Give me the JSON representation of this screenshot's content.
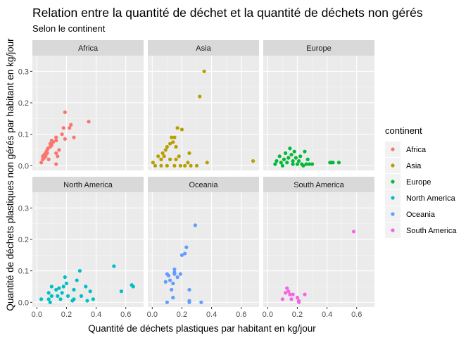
{
  "chart_data": {
    "type": "scatter",
    "title": "Relation entre la quantité de déchet et la quantité de déchets non gérés",
    "subtitle": "Selon le continent",
    "xlabel": "Quantité de déchets plastiques par habitant en kg/jour",
    "ylabel": "Quantité de déchets plastiques non gérés par habitant en kg/jour",
    "xlim": [
      -0.03,
      0.72
    ],
    "ylim": [
      -0.015,
      0.35
    ],
    "xticks": [
      0.0,
      0.2,
      0.4,
      0.6
    ],
    "xtick_labels": [
      "0.0",
      "0.2",
      "0.4",
      "0.6"
    ],
    "yticks": [
      0.0,
      0.1,
      0.2,
      0.3
    ],
    "ytick_labels": [
      "0.0",
      "0.1",
      "0.2",
      "0.3"
    ],
    "grid": true,
    "legend": {
      "title": "continent",
      "placement": "right"
    },
    "facet_layout": {
      "rows": 2,
      "cols": 3
    },
    "series": [
      {
        "name": "Africa",
        "color": "#F8766D",
        "points": [
          [
            0.03,
            0.01
          ],
          [
            0.04,
            0.02
          ],
          [
            0.04,
            0.03
          ],
          [
            0.05,
            0.025
          ],
          [
            0.05,
            0.035
          ],
          [
            0.06,
            0.04
          ],
          [
            0.06,
            0.03
          ],
          [
            0.065,
            0.045
          ],
          [
            0.07,
            0.05
          ],
          [
            0.07,
            0.04
          ],
          [
            0.075,
            0.055
          ],
          [
            0.08,
            0.02
          ],
          [
            0.09,
            0.06
          ],
          [
            0.09,
            0.07
          ],
          [
            0.1,
            0.08
          ],
          [
            0.1,
            0.065
          ],
          [
            0.11,
            0.075
          ],
          [
            0.13,
            0.08
          ],
          [
            0.13,
            0.09
          ],
          [
            0.13,
            0.04
          ],
          [
            0.13,
            0.005
          ],
          [
            0.14,
            0.03
          ],
          [
            0.15,
            0.05
          ],
          [
            0.17,
            0.1
          ],
          [
            0.18,
            0.12
          ],
          [
            0.19,
            0.17
          ],
          [
            0.19,
            0.085
          ],
          [
            0.22,
            0.12
          ],
          [
            0.23,
            0.13
          ],
          [
            0.25,
            0.09
          ],
          [
            0.35,
            0.14
          ]
        ]
      },
      {
        "name": "Asia",
        "color": "#B79F00",
        "points": [
          [
            0.005,
            0.01
          ],
          [
            0.02,
            0.0
          ],
          [
            0.04,
            0.03
          ],
          [
            0.06,
            0.02
          ],
          [
            0.06,
            0.0
          ],
          [
            0.07,
            0.04
          ],
          [
            0.08,
            0.03
          ],
          [
            0.09,
            0.05
          ],
          [
            0.1,
            0.06
          ],
          [
            0.1,
            0.0
          ],
          [
            0.12,
            0.07
          ],
          [
            0.12,
            0.02
          ],
          [
            0.13,
            0.09
          ],
          [
            0.14,
            0.075
          ],
          [
            0.15,
            0.09
          ],
          [
            0.15,
            0.0
          ],
          [
            0.16,
            0.06
          ],
          [
            0.16,
            0.02
          ],
          [
            0.17,
            0.12
          ],
          [
            0.18,
            0.03
          ],
          [
            0.19,
            0.0
          ],
          [
            0.2,
            0.115
          ],
          [
            0.22,
            0.0
          ],
          [
            0.24,
            0.01
          ],
          [
            0.25,
            0.04
          ],
          [
            0.26,
            0.0
          ],
          [
            0.3,
            0.0
          ],
          [
            0.32,
            0.22
          ],
          [
            0.35,
            0.3
          ],
          [
            0.37,
            0.01
          ],
          [
            0.68,
            0.015
          ]
        ]
      },
      {
        "name": "Europe",
        "color": "#00BA38",
        "points": [
          [
            0.05,
            0.005
          ],
          [
            0.06,
            0.015
          ],
          [
            0.08,
            0.03
          ],
          [
            0.09,
            0.01
          ],
          [
            0.1,
            0.0
          ],
          [
            0.11,
            0.02
          ],
          [
            0.12,
            0.04
          ],
          [
            0.13,
            0.01
          ],
          [
            0.14,
            0.025
          ],
          [
            0.15,
            0.055
          ],
          [
            0.16,
            0.035
          ],
          [
            0.17,
            0.005
          ],
          [
            0.17,
            0.015
          ],
          [
            0.18,
            0.045
          ],
          [
            0.19,
            0.025
          ],
          [
            0.2,
            0.005
          ],
          [
            0.21,
            0.015
          ],
          [
            0.22,
            0.03
          ],
          [
            0.23,
            0.005
          ],
          [
            0.24,
            0.0
          ],
          [
            0.25,
            0.045
          ],
          [
            0.26,
            0.005
          ],
          [
            0.27,
            0.02
          ],
          [
            0.28,
            0.005
          ],
          [
            0.3,
            0.005
          ],
          [
            0.42,
            0.01
          ],
          [
            0.43,
            0.01
          ],
          [
            0.44,
            0.01
          ],
          [
            0.48,
            0.01
          ]
        ]
      },
      {
        "name": "North America",
        "color": "#00BFC4",
        "points": [
          [
            0.03,
            0.01
          ],
          [
            0.08,
            0.01
          ],
          [
            0.08,
            0.03
          ],
          [
            0.09,
            0.0
          ],
          [
            0.1,
            0.02
          ],
          [
            0.1,
            0.05
          ],
          [
            0.13,
            0.04
          ],
          [
            0.14,
            0.02
          ],
          [
            0.15,
            0.045
          ],
          [
            0.16,
            0.01
          ],
          [
            0.17,
            0.03
          ],
          [
            0.18,
            0.05
          ],
          [
            0.19,
            0.08
          ],
          [
            0.2,
            0.06
          ],
          [
            0.21,
            0.02
          ],
          [
            0.24,
            0.005
          ],
          [
            0.25,
            0.01
          ],
          [
            0.25,
            0.04
          ],
          [
            0.27,
            0.07
          ],
          [
            0.29,
            0.1
          ],
          [
            0.3,
            0.02
          ],
          [
            0.33,
            0.05
          ],
          [
            0.34,
            0.005
          ],
          [
            0.36,
            0.035
          ],
          [
            0.38,
            0.01
          ],
          [
            0.52,
            0.115
          ],
          [
            0.57,
            0.035
          ],
          [
            0.64,
            0.055
          ],
          [
            0.65,
            0.05
          ]
        ]
      },
      {
        "name": "Oceania",
        "color": "#619CFF",
        "points": [
          [
            0.09,
            0.065
          ],
          [
            0.1,
            0.09
          ],
          [
            0.11,
            0.085
          ],
          [
            0.12,
            0.07
          ],
          [
            0.13,
            0.04
          ],
          [
            0.14,
            0.06
          ],
          [
            0.15,
            0.105
          ],
          [
            0.15,
            0.095
          ],
          [
            0.15,
            0.09
          ],
          [
            0.17,
            0.08
          ],
          [
            0.19,
            0.09
          ],
          [
            0.2,
            0.15
          ],
          [
            0.22,
            0.155
          ],
          [
            0.23,
            0.175
          ],
          [
            0.25,
            0.0
          ],
          [
            0.25,
            0.005
          ],
          [
            0.25,
            0.04
          ],
          [
            0.29,
            0.245
          ],
          [
            0.33,
            0.0
          ],
          [
            0.1,
            0.0
          ],
          [
            0.14,
            0.015
          ]
        ]
      },
      {
        "name": "South America",
        "color": "#F564E3",
        "points": [
          [
            0.1,
            0.01
          ],
          [
            0.12,
            0.03
          ],
          [
            0.13,
            0.045
          ],
          [
            0.14,
            0.035
          ],
          [
            0.15,
            0.025
          ],
          [
            0.16,
            0.01
          ],
          [
            0.17,
            0.025
          ],
          [
            0.2,
            0.015
          ],
          [
            0.21,
            0.0
          ],
          [
            0.21,
            0.005
          ],
          [
            0.25,
            0.025
          ],
          [
            0.58,
            0.225
          ]
        ]
      }
    ]
  }
}
